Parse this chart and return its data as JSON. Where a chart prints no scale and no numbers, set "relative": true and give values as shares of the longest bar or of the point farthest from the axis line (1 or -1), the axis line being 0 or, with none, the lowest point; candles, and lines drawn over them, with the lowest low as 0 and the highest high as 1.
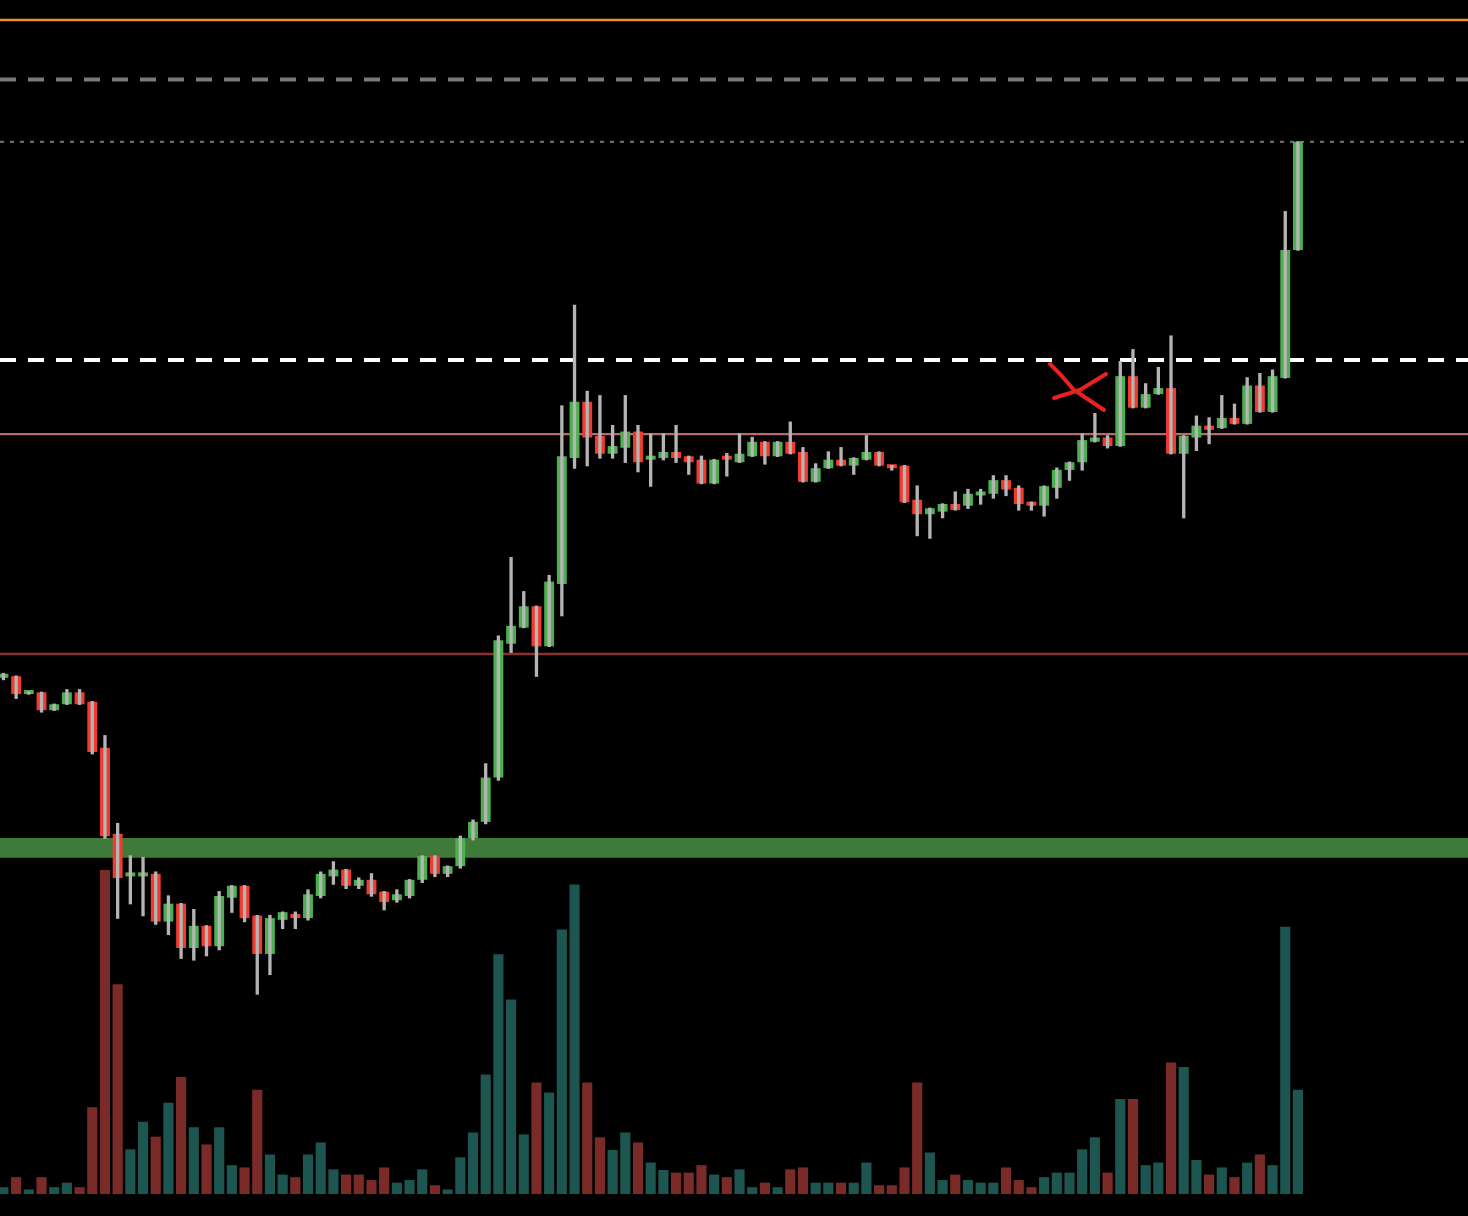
{
  "chart_data": [
    {
      "type": "candlestick",
      "relative": true,
      "categories": [
        null,
        null,
        null,
        null,
        null,
        null,
        null,
        null,
        null,
        null,
        null,
        null,
        null,
        null,
        null,
        null,
        null,
        null,
        null,
        null,
        null,
        null,
        null,
        null,
        null,
        null,
        null,
        null,
        null,
        null,
        null,
        null,
        null,
        null,
        null,
        null,
        null,
        null,
        null,
        null,
        null,
        null,
        null,
        null,
        null,
        null,
        null,
        null,
        null,
        null,
        null,
        null,
        null,
        null,
        null,
        null,
        null,
        null,
        null,
        null,
        null,
        null,
        null,
        null,
        null,
        null,
        null,
        null,
        null,
        null,
        null,
        null,
        null,
        null,
        null,
        null,
        null,
        null,
        null,
        null,
        null,
        null,
        null,
        null,
        null,
        null,
        null,
        null,
        null,
        null,
        null,
        null,
        null,
        null,
        null,
        null,
        null,
        null,
        null,
        null,
        null,
        null,
        null
      ],
      "ohlc": [
        [
          0.371,
          0.376,
          0.369,
          0.373
        ],
        [
          0.373,
          0.373,
          0.347,
          0.352
        ],
        [
          0.352,
          0.354,
          0.352,
          0.354
        ],
        [
          0.354,
          0.354,
          0.331,
          0.333
        ],
        [
          0.333,
          0.34,
          0.333,
          0.34
        ],
        [
          0.34,
          0.357,
          0.34,
          0.354
        ],
        [
          0.354,
          0.357,
          0.34,
          0.34
        ],
        [
          0.343,
          0.343,
          0.282,
          0.284
        ],
        [
          0.289,
          0.303,
          0.183,
          0.185
        ],
        [
          0.188,
          0.2,
          0.089,
          0.136
        ],
        [
          0.138,
          0.162,
          0.106,
          0.141
        ],
        [
          0.138,
          0.16,
          0.092,
          0.141
        ],
        [
          0.141,
          0.143,
          0.082,
          0.085
        ],
        [
          0.085,
          0.115,
          0.07,
          0.106
        ],
        [
          0.106,
          0.106,
          0.042,
          0.054
        ],
        [
          0.054,
          0.099,
          0.04,
          0.08
        ],
        [
          0.08,
          0.08,
          0.045,
          0.056
        ],
        [
          0.056,
          0.12,
          0.052,
          0.115
        ],
        [
          0.113,
          0.127,
          0.096,
          0.127
        ],
        [
          0.127,
          0.127,
          0.085,
          0.089
        ],
        [
          0.092,
          0.092,
          0,
          0.047
        ],
        [
          0.047,
          0.092,
          0.023,
          0.089
        ],
        [
          0.087,
          0.096,
          0.077,
          0.096
        ],
        [
          0.094,
          0.096,
          0.077,
          0.089
        ],
        [
          0.089,
          0.122,
          0.087,
          0.117
        ],
        [
          0.115,
          0.143,
          0.113,
          0.141
        ],
        [
          0.138,
          0.155,
          0.129,
          0.146
        ],
        [
          0.146,
          0.146,
          0.124,
          0.127
        ],
        [
          0.127,
          0.136,
          0.124,
          0.134
        ],
        [
          0.134,
          0.141,
          0.115,
          0.117
        ],
        [
          0.12,
          0.12,
          0.099,
          0.108
        ],
        [
          0.11,
          0.122,
          0.108,
          0.117
        ],
        [
          0.115,
          0.134,
          0.113,
          0.134
        ],
        [
          0.134,
          0.162,
          0.131,
          0.162
        ],
        [
          0.162,
          0.162,
          0.138,
          0.141
        ],
        [
          0.141,
          0.15,
          0.138,
          0.15
        ],
        [
          0.15,
          0.185,
          0.148,
          0.183
        ],
        [
          0.183,
          0.204,
          0.181,
          0.202
        ],
        [
          0.202,
          0.27,
          0.2,
          0.254
        ],
        [
          0.254,
          0.42,
          0.251,
          0.415
        ],
        [
          0.411,
          0.512,
          0.401,
          0.432
        ],
        [
          0.43,
          0.472,
          0.43,
          0.455
        ],
        [
          0.455,
          0.455,
          0.373,
          0.408
        ],
        [
          0.408,
          0.491,
          0.408,
          0.484
        ],
        [
          0.481,
          0.69,
          0.444,
          0.631
        ],
        [
          0.629,
          0.808,
          0.617,
          0.695
        ],
        [
          0.695,
          0.707,
          0.62,
          0.653
        ],
        [
          0.655,
          0.702,
          0.629,
          0.634
        ],
        [
          0.634,
          0.667,
          0.629,
          0.643
        ],
        [
          0.641,
          0.702,
          0.624,
          0.66
        ],
        [
          0.66,
          0.667,
          0.613,
          0.624
        ],
        [
          0.627,
          0.657,
          0.596,
          0.631
        ],
        [
          0.629,
          0.657,
          0.627,
          0.636
        ],
        [
          0.636,
          0.667,
          0.624,
          0.629
        ],
        [
          0.631,
          0.631,
          0.61,
          0.624
        ],
        [
          0.627,
          0.631,
          0.599,
          0.599
        ],
        [
          0.599,
          0.627,
          0.599,
          0.627
        ],
        [
          0.629,
          0.634,
          0.608,
          0.627
        ],
        [
          0.624,
          0.657,
          0.624,
          0.634
        ],
        [
          0.631,
          0.653,
          0.631,
          0.648
        ],
        [
          0.648,
          0.648,
          0.622,
          0.631
        ],
        [
          0.631,
          0.648,
          0.631,
          0.648
        ],
        [
          0.648,
          0.671,
          0.634,
          0.634
        ],
        [
          0.636,
          0.641,
          0.601,
          0.601
        ],
        [
          0.601,
          0.622,
          0.601,
          0.617
        ],
        [
          0.617,
          0.636,
          0.617,
          0.627
        ],
        [
          0.627,
          0.641,
          0.62,
          0.62
        ],
        [
          0.62,
          0.629,
          0.61,
          0.629
        ],
        [
          0.627,
          0.655,
          0.627,
          0.636
        ],
        [
          0.636,
          0.636,
          0.62,
          0.62
        ],
        [
          0.62,
          0.62,
          0.615,
          0.617
        ],
        [
          0.62,
          0.62,
          0.577,
          0.577
        ],
        [
          0.58,
          0.596,
          0.538,
          0.563
        ],
        [
          0.563,
          0.57,
          0.535,
          0.57
        ],
        [
          0.566,
          0.575,
          0.559,
          0.575
        ],
        [
          0.575,
          0.589,
          0.568,
          0.568
        ],
        [
          0.573,
          0.592,
          0.57,
          0.587
        ],
        [
          0.585,
          0.592,
          0.575,
          0.589
        ],
        [
          0.587,
          0.608,
          0.582,
          0.603
        ],
        [
          0.603,
          0.608,
          0.585,
          0.592
        ],
        [
          0.594,
          0.596,
          0.568,
          0.575
        ],
        [
          0.577,
          0.577,
          0.568,
          0.573
        ],
        [
          0.573,
          0.596,
          0.561,
          0.596
        ],
        [
          0.594,
          0.617,
          0.582,
          0.615
        ],
        [
          0.615,
          0.624,
          0.603,
          0.624
        ],
        [
          0.624,
          0.657,
          0.615,
          0.65
        ],
        [
          0.648,
          0.681,
          0.648,
          0.653
        ],
        [
          0.653,
          0.655,
          0.641,
          0.643
        ],
        [
          0.643,
          0.742,
          0.643,
          0.725
        ],
        [
          0.725,
          0.756,
          0.688,
          0.688
        ],
        [
          0.688,
          0.716,
          0.688,
          0.704
        ],
        [
          0.704,
          0.735,
          0.704,
          0.711
        ],
        [
          0.711,
          0.772,
          0.634,
          0.634
        ],
        [
          0.634,
          0.655,
          0.559,
          0.655
        ],
        [
          0.653,
          0.678,
          0.638,
          0.667
        ],
        [
          0.667,
          0.676,
          0.646,
          0.662
        ],
        [
          0.664,
          0.702,
          0.664,
          0.676
        ],
        [
          0.676,
          0.692,
          0.669,
          0.669
        ],
        [
          0.669,
          0.723,
          0.669,
          0.714
        ],
        [
          0.714,
          0.728,
          0.683,
          0.683
        ],
        [
          0.683,
          0.732,
          0.683,
          0.725
        ],
        [
          0.723,
          0.918,
          0.723,
          0.873
        ],
        [
          0.873,
          1,
          0.873,
          1
        ]
      ],
      "colors": [
        "#4caf50",
        "#f23b2f",
        "#4caf50",
        "#f23b2f",
        "#4caf50",
        "#4caf50",
        "#f23b2f",
        "#f23b2f",
        "#f23b2f",
        "#f23b2f",
        "#4caf50",
        "#4caf50",
        "#f23b2f",
        "#4caf50",
        "#f23b2f",
        "#4caf50",
        "#f23b2f",
        "#4caf50",
        "#4caf50",
        "#f23b2f",
        "#f23b2f",
        "#4caf50",
        "#4caf50",
        "#f23b2f",
        "#4caf50",
        "#4caf50",
        "#4caf50",
        "#f23b2f",
        "#4caf50",
        "#f23b2f",
        "#f23b2f",
        "#4caf50",
        "#4caf50",
        "#4caf50",
        "#f23b2f",
        "#4caf50",
        "#4caf50",
        "#4caf50",
        "#4caf50",
        "#4caf50",
        "#4caf50",
        "#4caf50",
        "#f23b2f",
        "#4caf50",
        "#4caf50",
        "#4caf50",
        "#f23b2f",
        "#f23b2f",
        "#4caf50",
        "#4caf50",
        "#f23b2f",
        "#4caf50",
        "#4caf50",
        "#f23b2f",
        "#f23b2f",
        "#f23b2f",
        "#4caf50",
        "#f23b2f",
        "#4caf50",
        "#4caf50",
        "#f23b2f",
        "#4caf50",
        "#f23b2f",
        "#f23b2f",
        "#4caf50",
        "#4caf50",
        "#f23b2f",
        "#4caf50",
        "#4caf50",
        "#f23b2f",
        "#f23b2f",
        "#f23b2f",
        "#f23b2f",
        "#4caf50",
        "#4caf50",
        "#f23b2f",
        "#4caf50",
        "#4caf50",
        "#4caf50",
        "#f23b2f",
        "#f23b2f",
        "#f23b2f",
        "#4caf50",
        "#4caf50",
        "#4caf50",
        "#4caf50",
        "#4caf50",
        "#f23b2f",
        "#4caf50",
        "#f23b2f",
        "#4caf50",
        "#4caf50",
        "#f23b2f",
        "#4caf50",
        "#4caf50",
        "#f23b2f",
        "#4caf50",
        "#f23b2f",
        "#4caf50",
        "#f23b2f",
        "#4caf50",
        "#4caf50",
        "#4caf50"
      ],
      "ref_lines": [
        {
          "axis": "y",
          "value": 1.143,
          "color": "#e8922a",
          "line_style": "solid"
        },
        {
          "axis": "y",
          "value": 1.073,
          "color": "#7a7a7a",
          "line_style": "dashed"
        },
        {
          "axis": "y",
          "value": 1,
          "color": "#6a6a6a",
          "line_style": "dotted"
        },
        {
          "axis": "y",
          "value": 0.744,
          "color": "#ffffff",
          "line_style": "dashed"
        },
        {
          "axis": "y",
          "value": 0.657,
          "color": "#b86a66",
          "line_style": "solid"
        },
        {
          "axis": "y",
          "value": 0.399,
          "color": "#8b3030",
          "line_style": "solid"
        }
      ],
      "bands": [
        {
          "axis": "y",
          "from": 0.16,
          "to": 0.183,
          "color": "#3f7a3a"
        }
      ]
    },
    {
      "type": "bar",
      "relative": true,
      "categories": [
        null,
        null,
        null,
        null,
        null,
        null,
        null,
        null,
        null,
        null,
        null,
        null,
        null,
        null,
        null,
        null,
        null,
        null,
        null,
        null,
        null,
        null,
        null,
        null,
        null,
        null,
        null,
        null,
        null,
        null,
        null,
        null,
        null,
        null,
        null,
        null,
        null,
        null,
        null,
        null,
        null,
        null,
        null,
        null,
        null,
        null,
        null,
        null,
        null,
        null,
        null,
        null,
        null,
        null,
        null,
        null,
        null,
        null,
        null,
        null,
        null,
        null,
        null,
        null,
        null,
        null,
        null,
        null,
        null,
        null,
        null,
        null,
        null,
        null,
        null,
        null,
        null,
        null,
        null,
        null,
        null,
        null,
        null,
        null,
        null,
        null,
        null,
        null,
        null,
        null,
        null,
        null,
        null,
        null,
        null,
        null,
        null,
        null,
        null,
        null,
        null,
        null,
        null
      ],
      "values": [
        0.021,
        0.052,
        0.014,
        0.052,
        0.021,
        0.035,
        0.021,
        0.268,
        1,
        0.647,
        0.138,
        0.223,
        0.177,
        0.282,
        0.361,
        0.206,
        0.153,
        0.206,
        0.089,
        0.082,
        0.322,
        0.122,
        0.06,
        0.052,
        0.122,
        0.159,
        0.076,
        0.06,
        0.06,
        0.043,
        0.082,
        0.035,
        0.043,
        0.076,
        0.027,
        0.014,
        0.113,
        0.19,
        0.369,
        0.74,
        0.6,
        0.184,
        0.344,
        0.313,
        0.816,
        0.955,
        0.344,
        0.175,
        0.136,
        0.19,
        0.159,
        0.097,
        0.074,
        0.066,
        0.066,
        0.089,
        0.06,
        0.052,
        0.076,
        0.021,
        0.035,
        0.021,
        0.076,
        0.082,
        0.035,
        0.035,
        0.035,
        0.035,
        0.097,
        0.027,
        0.027,
        0.082,
        0.344,
        0.128,
        0.043,
        0.06,
        0.043,
        0.035,
        0.035,
        0.082,
        0.043,
        0.021,
        0.052,
        0.066,
        0.066,
        0.138,
        0.175,
        0.066,
        0.293,
        0.293,
        0.089,
        0.097,
        0.406,
        0.392,
        0.105,
        0.06,
        0.082,
        0.052,
        0.097,
        0.122,
        0.089,
        0.825,
        0.322
      ],
      "colors": [
        "#1d5550",
        "#7a2b28",
        "#1d5550",
        "#7a2b28",
        "#1d5550",
        "#1d5550",
        "#7a2b28",
        "#7a2b28",
        "#7a2b28",
        "#7a2b28",
        "#1d5550",
        "#1d5550",
        "#7a2b28",
        "#1d5550",
        "#7a2b28",
        "#1d5550",
        "#7a2b28",
        "#1d5550",
        "#1d5550",
        "#7a2b28",
        "#7a2b28",
        "#1d5550",
        "#1d5550",
        "#7a2b28",
        "#1d5550",
        "#1d5550",
        "#1d5550",
        "#7a2b28",
        "#7a2b28",
        "#7a2b28",
        "#7a2b28",
        "#1d5550",
        "#1d5550",
        "#1d5550",
        "#7a2b28",
        "#1d5550",
        "#1d5550",
        "#1d5550",
        "#1d5550",
        "#1d5550",
        "#1d5550",
        "#1d5550",
        "#7a2b28",
        "#1d5550",
        "#1d5550",
        "#1d5550",
        "#7a2b28",
        "#7a2b28",
        "#1d5550",
        "#1d5550",
        "#7a2b28",
        "#1d5550",
        "#1d5550",
        "#7a2b28",
        "#7a2b28",
        "#7a2b28",
        "#1d5550",
        "#7a2b28",
        "#1d5550",
        "#1d5550",
        "#7a2b28",
        "#1d5550",
        "#7a2b28",
        "#7a2b28",
        "#1d5550",
        "#1d5550",
        "#7a2b28",
        "#1d5550",
        "#1d5550",
        "#7a2b28",
        "#7a2b28",
        "#7a2b28",
        "#7a2b28",
        "#1d5550",
        "#1d5550",
        "#7a2b28",
        "#1d5550",
        "#1d5550",
        "#1d5550",
        "#7a2b28",
        "#7a2b28",
        "#7a2b28",
        "#1d5550",
        "#1d5550",
        "#1d5550",
        "#1d5550",
        "#1d5550",
        "#7a2b28",
        "#1d5550",
        "#7a2b28",
        "#1d5550",
        "#1d5550",
        "#7a2b28",
        "#1d5550",
        "#1d5550",
        "#7a2b28",
        "#1d5550",
        "#7a2b28",
        "#1d5550",
        "#7a2b28",
        "#1d5550",
        "#1d5550",
        "#1d5550"
      ]
    }
  ]
}
